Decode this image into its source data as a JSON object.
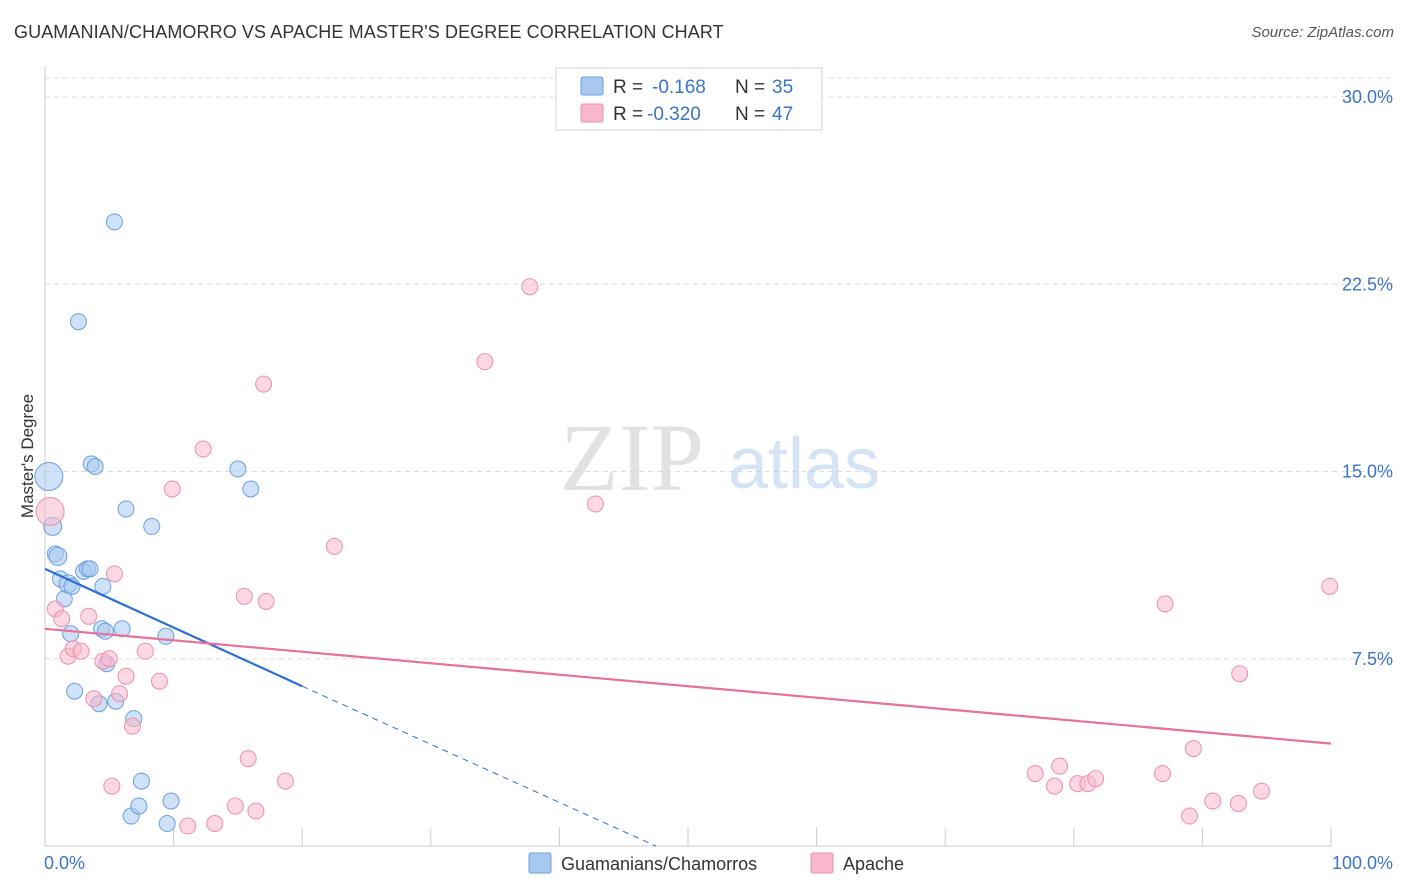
{
  "title": "GUAMANIAN/CHAMORRO VS APACHE MASTER'S DEGREE CORRELATION CHART",
  "source": "Source: ZipAtlas.com",
  "watermark": {
    "zip": "ZIP",
    "atlas": "atlas"
  },
  "colors": {
    "blue_fill": "#a8c8f0",
    "blue_stroke": "#6b9fe0",
    "blue_line": "#2a6fd4",
    "pink_fill": "#f7b8cb",
    "pink_stroke": "#ec8fae",
    "pink_line": "#e8709a",
    "tick_label": "#3a74c6",
    "grid": "#dddddd"
  },
  "chart_data": {
    "type": "scatter",
    "title": "GUAMANIAN/CHAMORRO VS APACHE MASTER'S DEGREE CORRELATION CHART",
    "xlabel": "",
    "ylabel": "Master's Degree",
    "xlim": [
      0,
      100
    ],
    "ylim": [
      0,
      30
    ],
    "x_tick_labels": [
      "0.0%",
      "100.0%"
    ],
    "y_ticks": [
      7.5,
      15.0,
      22.5,
      30.0
    ],
    "y_tick_labels": [
      "7.5%",
      "15.0%",
      "22.5%",
      "30.0%"
    ],
    "grid": "horizontal dashed",
    "legend": {
      "position": "top-center",
      "rows": [
        {
          "r_label": "R =",
          "r_value": "-0.168",
          "n_label": "N =",
          "n_value": "35"
        },
        {
          "r_label": "R =",
          "r_value": "-0.320",
          "n_label": "N =",
          "n_value": "47"
        }
      ]
    },
    "bottom_legend": [
      "Guamanians/Chamorros",
      "Apache"
    ],
    "series": [
      {
        "name": "Guamanians/Chamorros",
        "color": "#a8c8f0",
        "points": [
          [
            0.3,
            14.8,
            14
          ],
          [
            0.6,
            12.8,
            9
          ],
          [
            0.8,
            11.7,
            8
          ],
          [
            1.0,
            11.6,
            9
          ],
          [
            1.2,
            10.7,
            8
          ],
          [
            1.5,
            9.9,
            8
          ],
          [
            1.8,
            10.5,
            9
          ],
          [
            2.0,
            8.5,
            8
          ],
          [
            2.3,
            6.2,
            8
          ],
          [
            2.1,
            10.4,
            8
          ],
          [
            2.6,
            21.0,
            8
          ],
          [
            3.0,
            11.0,
            8
          ],
          [
            3.3,
            11.1,
            8
          ],
          [
            3.5,
            11.1,
            8
          ],
          [
            3.6,
            15.3,
            8
          ],
          [
            3.9,
            15.2,
            8
          ],
          [
            4.2,
            5.7,
            8
          ],
          [
            4.4,
            8.7,
            8
          ],
          [
            4.5,
            10.4,
            8
          ],
          [
            4.7,
            8.6,
            8
          ],
          [
            4.8,
            7.3,
            8
          ],
          [
            5.4,
            25.0,
            8
          ],
          [
            5.5,
            5.8,
            8
          ],
          [
            6.0,
            8.7,
            8
          ],
          [
            6.3,
            13.5,
            8
          ],
          [
            6.7,
            1.2,
            8
          ],
          [
            6.9,
            5.1,
            8
          ],
          [
            7.3,
            1.6,
            8
          ],
          [
            7.5,
            2.6,
            8
          ],
          [
            8.3,
            12.8,
            8
          ],
          [
            9.4,
            8.4,
            8
          ],
          [
            9.5,
            0.9,
            8
          ],
          [
            9.8,
            1.8,
            8
          ],
          [
            15.0,
            15.1,
            8
          ],
          [
            16.0,
            14.3,
            8
          ]
        ],
        "trend": {
          "x": [
            0,
            20
          ],
          "y": [
            11.1,
            6.4
          ],
          "dashed_extension_to": [
            47.5,
            0
          ]
        }
      },
      {
        "name": "Apache",
        "color": "#f7b8cb",
        "points": [
          [
            0.4,
            13.4,
            14
          ],
          [
            0.8,
            9.5,
            8
          ],
          [
            1.3,
            9.1,
            8
          ],
          [
            1.8,
            7.6,
            8
          ],
          [
            2.2,
            7.9,
            8
          ],
          [
            2.8,
            7.8,
            8
          ],
          [
            3.4,
            9.2,
            8
          ],
          [
            3.8,
            5.9,
            8
          ],
          [
            4.5,
            7.4,
            8
          ],
          [
            5.0,
            7.5,
            8
          ],
          [
            5.2,
            2.4,
            8
          ],
          [
            5.4,
            10.9,
            8
          ],
          [
            5.8,
            6.1,
            8
          ],
          [
            6.3,
            6.8,
            8
          ],
          [
            6.8,
            4.8,
            8
          ],
          [
            7.8,
            7.8,
            8
          ],
          [
            8.9,
            6.6,
            8
          ],
          [
            9.9,
            14.3,
            8
          ],
          [
            11.1,
            0.8,
            8
          ],
          [
            12.3,
            15.9,
            8
          ],
          [
            13.2,
            0.9,
            8
          ],
          [
            14.8,
            1.6,
            8
          ],
          [
            15.5,
            10.0,
            8
          ],
          [
            15.8,
            3.5,
            8
          ],
          [
            16.4,
            1.4,
            8
          ],
          [
            17.0,
            18.5,
            8
          ],
          [
            17.2,
            9.8,
            8
          ],
          [
            18.7,
            2.6,
            8
          ],
          [
            22.5,
            12.0,
            8
          ],
          [
            34.2,
            19.4,
            8
          ],
          [
            37.7,
            22.4,
            8
          ],
          [
            42.8,
            13.7,
            8
          ],
          [
            77.0,
            2.9,
            8
          ],
          [
            78.5,
            2.4,
            8
          ],
          [
            78.9,
            3.2,
            8
          ],
          [
            80.3,
            2.5,
            8
          ],
          [
            81.1,
            2.5,
            8
          ],
          [
            81.7,
            2.7,
            8
          ],
          [
            86.9,
            2.9,
            8
          ],
          [
            87.1,
            9.7,
            8
          ],
          [
            89.0,
            1.2,
            8
          ],
          [
            89.3,
            3.9,
            8
          ],
          [
            90.8,
            1.8,
            8
          ],
          [
            92.8,
            1.7,
            8
          ],
          [
            92.9,
            6.9,
            8
          ],
          [
            94.6,
            2.2,
            8
          ],
          [
            99.9,
            10.4,
            8
          ]
        ],
        "trend": {
          "x": [
            0,
            100
          ],
          "y": [
            8.7,
            4.1
          ]
        }
      }
    ]
  }
}
